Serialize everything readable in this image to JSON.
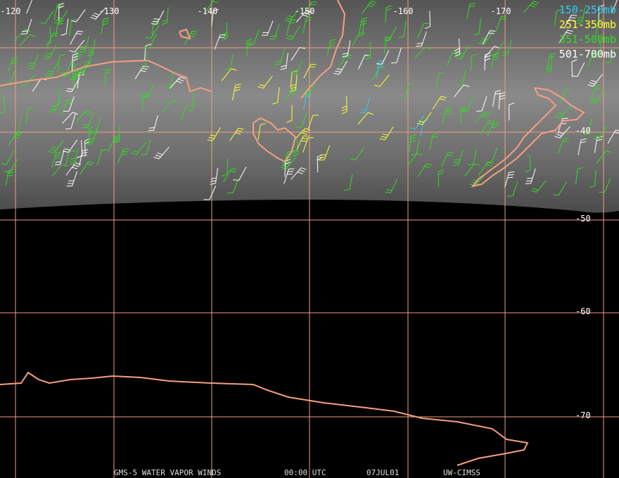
{
  "map": {
    "longitude_labels": [
      "-120",
      "-130",
      "-140",
      "-150",
      "-160",
      "-170"
    ],
    "latitude_labels": [
      "-40",
      "-50",
      "-60",
      "-70"
    ],
    "legend": [
      {
        "label": "150-250mb",
        "color": "#33ccee"
      },
      {
        "label": "251-350mb",
        "color": "#ffff33"
      },
      {
        "label": "351-500mb",
        "color": "#33dd22"
      },
      {
        "label": "501-700mb",
        "color": "#ffffff"
      }
    ],
    "footer": [
      "GMS-5 WATER VAPOR WINDS",
      "00:00 UTC",
      "07JUL01",
      "UW-CIMSS"
    ]
  }
}
